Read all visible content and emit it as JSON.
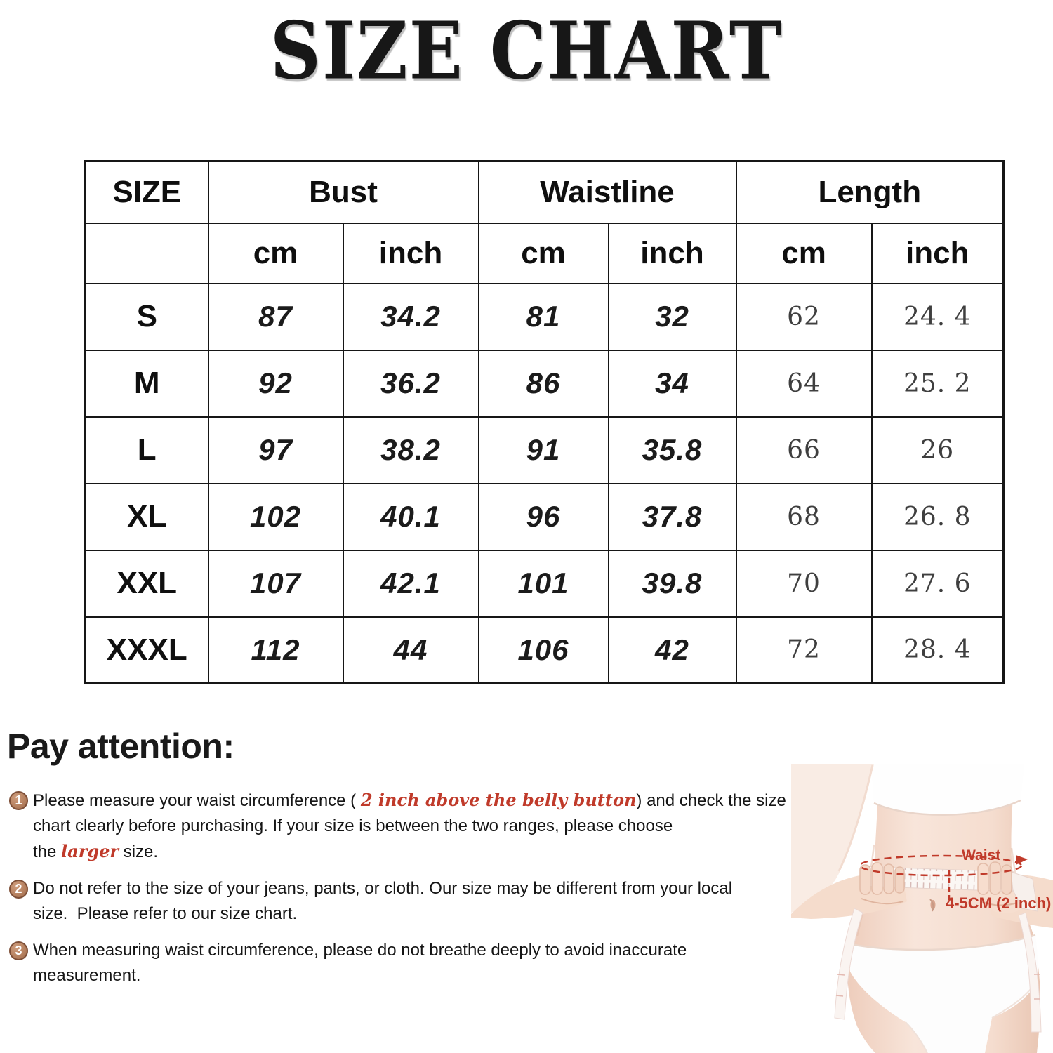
{
  "title": "SIZE CHART",
  "chart_data": {
    "type": "table",
    "title": "SIZE CHART",
    "columns": [
      "SIZE",
      "Bust cm",
      "Bust inch",
      "Waistline cm",
      "Waistline inch",
      "Length cm",
      "Length inch"
    ],
    "rows": [
      [
        "S",
        87,
        34.2,
        81,
        32,
        62,
        24.4
      ],
      [
        "M",
        92,
        36.2,
        86,
        34,
        64,
        25.2
      ],
      [
        "L",
        97,
        38.2,
        91,
        35.8,
        66,
        26
      ],
      [
        "XL",
        102,
        40.1,
        96,
        37.8,
        68,
        26.8
      ],
      [
        "XXL",
        107,
        42.1,
        101,
        39.8,
        70,
        27.6
      ],
      [
        "XXXL",
        112,
        44,
        106,
        42,
        72,
        28.4
      ]
    ]
  },
  "table": {
    "group_headers": [
      "SIZE",
      "Bust",
      "Waistline",
      "Length"
    ],
    "unit_row": [
      "cm",
      "inch",
      "cm",
      "inch",
      "cm",
      "inch"
    ],
    "rows": [
      {
        "size": "S",
        "bust_cm": "87",
        "bust_in": "34.2",
        "waist_cm": "81",
        "waist_in": "32",
        "length_cm": "62",
        "length_in": "24. 4"
      },
      {
        "size": "M",
        "bust_cm": "92",
        "bust_in": "36.2",
        "waist_cm": "86",
        "waist_in": "34",
        "length_cm": "64",
        "length_in": "25. 2"
      },
      {
        "size": "L",
        "bust_cm": "97",
        "bust_in": "38.2",
        "waist_cm": "91",
        "waist_in": "35.8",
        "length_cm": "66",
        "length_in": "26"
      },
      {
        "size": "XL",
        "bust_cm": "102",
        "bust_in": "40.1",
        "waist_cm": "96",
        "waist_in": "37.8",
        "length_cm": "68",
        "length_in": "26. 8"
      },
      {
        "size": "XXL",
        "bust_cm": "107",
        "bust_in": "42.1",
        "waist_cm": "101",
        "waist_in": "39.8",
        "length_cm": "70",
        "length_in": "27. 6"
      },
      {
        "size": "XXXL",
        "bust_cm": "112",
        "bust_in": "44",
        "waist_cm": "106",
        "waist_in": "42",
        "length_cm": "72",
        "length_in": "28. 4"
      }
    ]
  },
  "pay_attention": {
    "heading": "Pay attention:",
    "items": [
      {
        "number": "1",
        "segments": [
          {
            "style": "normal",
            "text": "Please measure your waist circumference ( "
          },
          {
            "style": "red",
            "text": "2 inch above the belly button"
          },
          {
            "style": "normal",
            "text": ") and check the size\nchart clearly before purchasing. If your size is between the two ranges, please choose\nthe "
          },
          {
            "style": "red",
            "text": "larger"
          },
          {
            "style": "normal",
            "text": " size."
          }
        ]
      },
      {
        "number": "2",
        "segments": [
          {
            "style": "normal",
            "text": "Do not refer to the size of your jeans, pants, or cloth. Our size may be different from your local\nsize.  Please refer to our size chart."
          }
        ]
      },
      {
        "number": "3",
        "segments": [
          {
            "style": "normal",
            "text": "When measuring waist circumference, please do not breathe deeply to avoid inaccurate\nmeasurement."
          }
        ]
      }
    ]
  },
  "figure": {
    "waist_label": "Waist",
    "measurement_label": "4-5CM  (2 inch)"
  },
  "colors": {
    "accent_red": "#c03a2a",
    "badge_fill": "#b5805f",
    "badge_border": "#7e4f37",
    "table_border": "#161616",
    "length_value_color": "#3f3f3f"
  }
}
